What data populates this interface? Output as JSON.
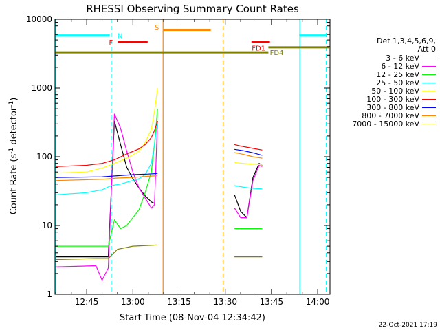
{
  "chart_data": {
    "type": "line",
    "title": "RHESSI Observing Summary Count Rates",
    "xlabel": "Start Time (08-Nov-04 12:34:42)",
    "ylabel_main": "Count Rate (s",
    "ylabel_sup1": "-1",
    "ylabel_mid": " detector",
    "ylabel_sup2": "-1",
    "ylabel_end": ")",
    "yscale": "log",
    "ylim": [
      1,
      10000
    ],
    "xlim_min": [
      34.7,
      124
    ],
    "x_ticks": [
      {
        "min": 45,
        "label": "12:45"
      },
      {
        "min": 60,
        "label": "13:00"
      },
      {
        "min": 75,
        "label": "13:15"
      },
      {
        "min": 90,
        "label": "13:30"
      },
      {
        "min": 105,
        "label": "13:45"
      },
      {
        "min": 120,
        "label": "14:00"
      }
    ],
    "y_ticks": [
      {
        "v": 1,
        "label": "1"
      },
      {
        "v": 10,
        "label": "10"
      },
      {
        "v": 100,
        "label": "100"
      },
      {
        "v": 1000,
        "label": "1000"
      },
      {
        "v": 10000,
        "label": "10000"
      }
    ],
    "legend_header": [
      "Det 1,3,4,5,6,9,",
      "Att 0"
    ],
    "legend_position": "right",
    "footer_date": "22-Oct-2021 17:19",
    "series": [
      {
        "name": "3 - 6 keV",
        "color": "#000000",
        "segments": [
          [
            [
              35,
              3.5
            ],
            [
              45,
              3.5
            ],
            [
              52,
              3.5
            ],
            [
              54,
              330
            ],
            [
              56,
              150
            ],
            [
              58,
              70
            ],
            [
              60,
              48
            ],
            [
              62,
              35
            ],
            [
              64,
              27
            ],
            [
              66,
              22
            ],
            [
              67,
              21
            ]
          ],
          [
            [
              93,
              28
            ],
            [
              95,
              16
            ],
            [
              97,
              13
            ],
            [
              99,
              50
            ],
            [
              101,
              80
            ],
            [
              102,
              75
            ]
          ]
        ]
      },
      {
        "name": "6 - 12 keV",
        "color": "#ff00ff",
        "segments": [
          [
            [
              35,
              2.5
            ],
            [
              48,
              2.6
            ],
            [
              50,
              1.6
            ],
            [
              52,
              2.4
            ],
            [
              54,
              420
            ],
            [
              56,
              260
            ],
            [
              58,
              120
            ],
            [
              60,
              60
            ],
            [
              62,
              35
            ],
            [
              64,
              25
            ],
            [
              66,
              18
            ],
            [
              67,
              20
            ],
            [
              68,
              330
            ]
          ],
          [
            [
              93,
              18
            ],
            [
              95,
              13
            ],
            [
              97,
              13
            ],
            [
              99,
              45
            ],
            [
              101,
              75
            ],
            [
              102,
              72
            ]
          ]
        ]
      },
      {
        "name": "12 - 25 keV",
        "color": "#00ff00",
        "segments": [
          [
            [
              35,
              5
            ],
            [
              44,
              5
            ],
            [
              52,
              5
            ],
            [
              54,
              12
            ],
            [
              56,
              9
            ],
            [
              58,
              10
            ],
            [
              60,
              13
            ],
            [
              62,
              17
            ],
            [
              64,
              30
            ],
            [
              66,
              60
            ],
            [
              67,
              150
            ],
            [
              68,
              500
            ]
          ],
          [
            [
              93,
              9
            ],
            [
              97,
              9
            ],
            [
              102,
              9
            ]
          ]
        ]
      },
      {
        "name": "25 - 50 keV",
        "color": "#00ffff",
        "segments": [
          [
            [
              35,
              28
            ],
            [
              45,
              30
            ],
            [
              50,
              33
            ],
            [
              53,
              38
            ],
            [
              56,
              40
            ],
            [
              60,
              45
            ],
            [
              62,
              48
            ],
            [
              64,
              55
            ],
            [
              66,
              80
            ],
            [
              67,
              150
            ],
            [
              68,
              320
            ]
          ],
          [
            [
              93,
              38
            ],
            [
              96,
              36
            ],
            [
              98,
              35
            ],
            [
              102,
              34
            ]
          ]
        ]
      },
      {
        "name": "50 - 100 keV",
        "color": "#ffff00",
        "segments": [
          [
            [
              35,
              58
            ],
            [
              45,
              60
            ],
            [
              50,
              68
            ],
            [
              54,
              80
            ],
            [
              58,
              95
            ],
            [
              62,
              120
            ],
            [
              64,
              160
            ],
            [
              66,
              250
            ],
            [
              67,
              450
            ],
            [
              68,
              1000
            ]
          ],
          [
            [
              93,
              82
            ],
            [
              96,
              80
            ],
            [
              99,
              78
            ],
            [
              102,
              76
            ]
          ]
        ]
      },
      {
        "name": "100 - 300 keV",
        "color": "#ff0000",
        "segments": [
          [
            [
              35,
              72
            ],
            [
              45,
              75
            ],
            [
              50,
              80
            ],
            [
              54,
              90
            ],
            [
              58,
              110
            ],
            [
              62,
              130
            ],
            [
              64,
              150
            ],
            [
              66,
              190
            ],
            [
              67,
              240
            ],
            [
              68,
              330
            ]
          ],
          [
            [
              93,
              150
            ],
            [
              96,
              140
            ],
            [
              99,
              132
            ],
            [
              102,
              125
            ]
          ]
        ]
      },
      {
        "name": "300 - 800 keV",
        "color": "#0000ff",
        "segments": [
          [
            [
              35,
              50
            ],
            [
              50,
              51
            ],
            [
              55,
              53
            ],
            [
              60,
              55
            ],
            [
              65,
              56
            ],
            [
              68,
              57
            ]
          ],
          [
            [
              93,
              128
            ],
            [
              96,
              122
            ],
            [
              99,
              114
            ],
            [
              102,
              105
            ]
          ]
        ]
      },
      {
        "name": "800 - 7000 keV",
        "color": "#ff8800",
        "segments": [
          [
            [
              35,
              45
            ],
            [
              50,
              47
            ],
            [
              55,
              49
            ],
            [
              60,
              50
            ],
            [
              65,
              52
            ],
            [
              68,
              53
            ]
          ],
          [
            [
              93,
              115
            ],
            [
              96,
              108
            ],
            [
              99,
              100
            ],
            [
              102,
              95
            ]
          ]
        ]
      },
      {
        "name": "7000 - 15000 keV",
        "color": "#808000",
        "segments": [
          [
            [
              35,
              3.2
            ],
            [
              48,
              3.3
            ],
            [
              52,
              3.3
            ],
            [
              55,
              4.5
            ],
            [
              60,
              5
            ],
            [
              68,
              5.2
            ]
          ],
          [
            [
              93,
              3.5
            ],
            [
              97,
              3.5
            ],
            [
              102,
              3.5
            ]
          ]
        ]
      }
    ],
    "flag_bars": [
      {
        "label": "N",
        "color": "#00ffff",
        "y": 5800,
        "segments": [
          [
            34.7,
            52.5
          ],
          [
            114,
            123
          ]
        ],
        "label_at": 55,
        "label_y": 5800,
        "label_side": "right"
      },
      {
        "label": "F",
        "color": "#ff0000",
        "y": 4700,
        "segments": [
          [
            55,
            64.8
          ]
        ],
        "label_at": 53.5,
        "label_y": 4700,
        "label_side": "left"
      },
      {
        "label": "S",
        "color": "#ff8800",
        "y": 7000,
        "segments": [
          [
            69.8,
            85.3
          ]
        ],
        "label_at": 68.5,
        "label_y": 7800,
        "label_side": "left"
      },
      {
        "label": "FD1",
        "color": "#ff0000",
        "y": 4700,
        "segments": [
          [
            98.5,
            104.5
          ]
        ],
        "label_at": 98.6,
        "label_y": 3850,
        "label_side": "right"
      },
      {
        "label": "FD4",
        "color": "#808000",
        "y": 3300,
        "segments": [
          [
            34.7,
            104
          ]
        ],
        "label_at": 104.5,
        "label_y": 3300,
        "label_side": "right"
      },
      {
        "label": "",
        "color": "#808000",
        "y": 3900,
        "segments": [
          [
            104,
            123.8
          ]
        ],
        "label_at": 0,
        "label_y": 0,
        "label_side": "right"
      }
    ],
    "vlines": [
      {
        "min": 34.8,
        "color": "#00ffff",
        "dash": false
      },
      {
        "min": 53.0,
        "color": "#00ffff",
        "dash": true
      },
      {
        "min": 69.8,
        "color": "#ff8800",
        "dash": false
      },
      {
        "min": 89.3,
        "color": "#ff8800",
        "dash": true
      },
      {
        "min": 114.2,
        "color": "#00ffff",
        "dash": false
      },
      {
        "min": 122.8,
        "color": "#00ffff",
        "dash": true
      }
    ]
  }
}
